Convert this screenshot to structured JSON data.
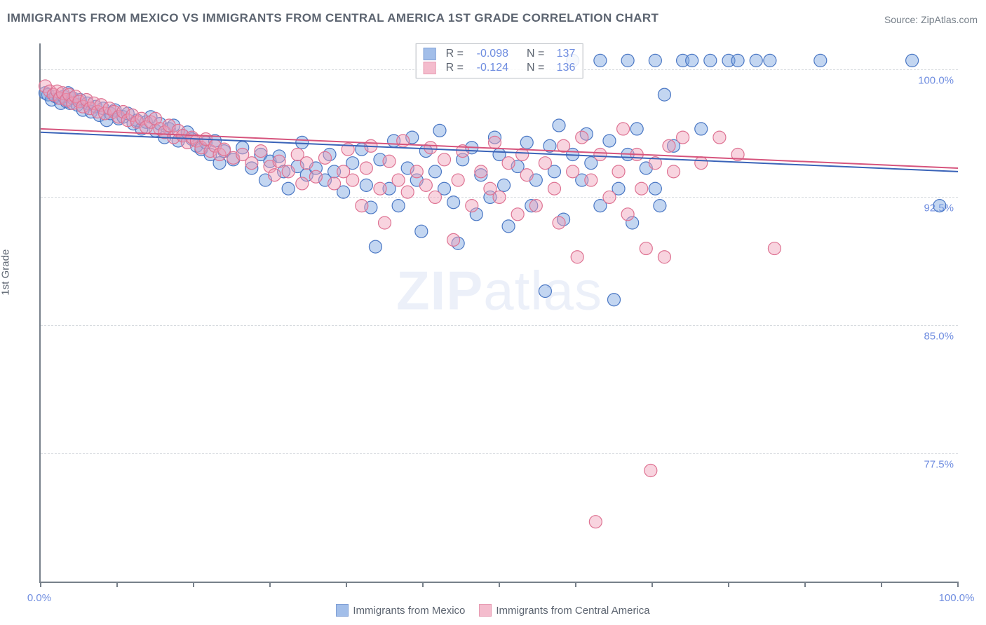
{
  "title": "IMMIGRANTS FROM MEXICO VS IMMIGRANTS FROM CENTRAL AMERICA 1ST GRADE CORRELATION CHART",
  "source_label": "Source: ZipAtlas.com",
  "watermark_a": "ZIP",
  "watermark_b": "atlas",
  "y_axis_label": "1st Grade",
  "chart": {
    "type": "scatter",
    "xlim": [
      0,
      100
    ],
    "ylim": [
      70,
      101.5
    ],
    "x_ticks": [
      0,
      8.3,
      16.7,
      25,
      33.3,
      41.7,
      50,
      58.3,
      66.7,
      75,
      83.3,
      91.7,
      100
    ],
    "x_tick_labels_visible": {
      "start": "0.0%",
      "end": "100.0%"
    },
    "y_gridlines": [
      77.5,
      85.0,
      92.5,
      100.0
    ],
    "y_tick_labels": [
      "77.5%",
      "85.0%",
      "92.5%",
      "100.0%"
    ],
    "grid_color": "#d7dbdf",
    "axis_color": "#77808a",
    "point_radius": 9,
    "point_opacity": 0.45,
    "series": [
      {
        "name": "Immigrants from Mexico",
        "fill": "#7ba3e0",
        "stroke": "#4a77c4",
        "R_label": "R  =",
        "R": "-0.098",
        "N_label": "N  =",
        "N": "137",
        "trend": {
          "y_at_x0": 96.3,
          "y_at_x100": 94.0,
          "color": "#3a63b8",
          "width": 2
        },
        "points": [
          [
            0.5,
            98.6
          ],
          [
            0.8,
            98.5
          ],
          [
            1.2,
            98.2
          ],
          [
            1.6,
            98.4
          ],
          [
            2.0,
            98.3
          ],
          [
            2.2,
            98.0
          ],
          [
            2.5,
            98.4
          ],
          [
            2.8,
            98.1
          ],
          [
            3.0,
            98.6
          ],
          [
            3.2,
            98.0
          ],
          [
            3.5,
            98.3
          ],
          [
            4.0,
            97.9
          ],
          [
            4.3,
            98.2
          ],
          [
            4.6,
            97.6
          ],
          [
            5.1,
            98.0
          ],
          [
            5.5,
            97.5
          ],
          [
            6.0,
            97.8
          ],
          [
            6.4,
            97.3
          ],
          [
            6.8,
            97.7
          ],
          [
            7.2,
            97.0
          ],
          [
            7.6,
            97.4
          ],
          [
            8.1,
            97.6
          ],
          [
            8.5,
            97.1
          ],
          [
            9.0,
            97.2
          ],
          [
            9.5,
            97.4
          ],
          [
            10.1,
            96.8
          ],
          [
            10.5,
            97.0
          ],
          [
            11.0,
            96.5
          ],
          [
            11.5,
            96.9
          ],
          [
            12.0,
            97.2
          ],
          [
            12.5,
            96.4
          ],
          [
            13.0,
            96.8
          ],
          [
            13.5,
            96.0
          ],
          [
            14.0,
            96.5
          ],
          [
            14.5,
            96.7
          ],
          [
            15.0,
            95.8
          ],
          [
            15.5,
            96.1
          ],
          [
            16.0,
            96.3
          ],
          [
            16.5,
            95.9
          ],
          [
            17.0,
            95.5
          ],
          [
            17.5,
            95.3
          ],
          [
            18.0,
            95.7
          ],
          [
            18.5,
            95.0
          ],
          [
            19.0,
            95.8
          ],
          [
            19.5,
            94.5
          ],
          [
            20.0,
            95.2
          ],
          [
            21.0,
            94.7
          ],
          [
            22.0,
            95.4
          ],
          [
            23.0,
            94.2
          ],
          [
            24.0,
            95.0
          ],
          [
            24.5,
            93.5
          ],
          [
            25.0,
            94.6
          ],
          [
            26.0,
            94.9
          ],
          [
            26.5,
            94.0
          ],
          [
            27.0,
            93.0
          ],
          [
            28.0,
            94.3
          ],
          [
            28.5,
            95.7
          ],
          [
            29.0,
            93.8
          ],
          [
            30.0,
            94.2
          ],
          [
            31.0,
            93.5
          ],
          [
            31.5,
            95.0
          ],
          [
            32.0,
            94.0
          ],
          [
            33.0,
            92.8
          ],
          [
            34.0,
            94.5
          ],
          [
            35.0,
            95.3
          ],
          [
            35.5,
            93.2
          ],
          [
            36.0,
            91.9
          ],
          [
            36.5,
            89.6
          ],
          [
            37.0,
            94.7
          ],
          [
            38.0,
            93.0
          ],
          [
            38.5,
            95.8
          ],
          [
            39.0,
            92.0
          ],
          [
            40.0,
            94.2
          ],
          [
            40.5,
            96.0
          ],
          [
            41.0,
            93.5
          ],
          [
            41.5,
            90.5
          ],
          [
            42.0,
            95.2
          ],
          [
            43.0,
            94.0
          ],
          [
            43.5,
            96.4
          ],
          [
            44.0,
            93.0
          ],
          [
            45.0,
            92.2
          ],
          [
            45.5,
            89.8
          ],
          [
            46.0,
            94.7
          ],
          [
            47.0,
            95.4
          ],
          [
            47.5,
            91.5
          ],
          [
            48.0,
            93.8
          ],
          [
            49.0,
            92.5
          ],
          [
            49.5,
            96.0
          ],
          [
            50.0,
            95.0
          ],
          [
            50.5,
            93.2
          ],
          [
            51.0,
            90.8
          ],
          [
            52.0,
            94.3
          ],
          [
            53.0,
            95.7
          ],
          [
            53.5,
            92.0
          ],
          [
            54.0,
            93.5
          ],
          [
            55.0,
            87.0
          ],
          [
            55.5,
            95.5
          ],
          [
            56.0,
            94.0
          ],
          [
            56.5,
            96.7
          ],
          [
            57.0,
            91.2
          ],
          [
            58.0,
            100.5
          ],
          [
            58.0,
            95.0
          ],
          [
            59.0,
            93.5
          ],
          [
            59.5,
            96.2
          ],
          [
            60.0,
            94.5
          ],
          [
            61.0,
            92.0
          ],
          [
            61.0,
            100.5
          ],
          [
            62.0,
            95.8
          ],
          [
            62.5,
            86.5
          ],
          [
            63.0,
            93.0
          ],
          [
            64.0,
            100.5
          ],
          [
            64.0,
            95.0
          ],
          [
            64.5,
            91.0
          ],
          [
            65.0,
            96.5
          ],
          [
            66.0,
            94.2
          ],
          [
            67.0,
            100.5
          ],
          [
            67.0,
            93.0
          ],
          [
            67.5,
            92.0
          ],
          [
            68.0,
            98.5
          ],
          [
            69.0,
            95.5
          ],
          [
            70.0,
            100.5
          ],
          [
            71.0,
            100.5
          ],
          [
            72.0,
            96.5
          ],
          [
            73.0,
            100.5
          ],
          [
            75.0,
            100.5
          ],
          [
            76.0,
            100.5
          ],
          [
            78.0,
            100.5
          ],
          [
            79.5,
            100.5
          ],
          [
            85.0,
            100.5
          ],
          [
            95.0,
            100.5
          ],
          [
            98.0,
            92.0
          ]
        ]
      },
      {
        "name": "Immigrants from Central America",
        "fill": "#f0a0b8",
        "stroke": "#de7292",
        "R_label": "R  =",
        "R": "-0.124",
        "N_label": "N  =",
        "N": "136",
        "trend": {
          "y_at_x0": 96.5,
          "y_at_x100": 94.2,
          "color": "#d6547d",
          "width": 2
        },
        "points": [
          [
            0.5,
            99.0
          ],
          [
            1.0,
            98.7
          ],
          [
            1.4,
            98.5
          ],
          [
            1.8,
            98.7
          ],
          [
            2.1,
            98.3
          ],
          [
            2.4,
            98.6
          ],
          [
            2.8,
            98.2
          ],
          [
            3.1,
            98.5
          ],
          [
            3.5,
            98.0
          ],
          [
            3.8,
            98.4
          ],
          [
            4.2,
            98.1
          ],
          [
            4.6,
            97.8
          ],
          [
            5.0,
            98.2
          ],
          [
            5.4,
            97.7
          ],
          [
            5.8,
            98.0
          ],
          [
            6.2,
            97.5
          ],
          [
            6.6,
            97.9
          ],
          [
            7.0,
            97.4
          ],
          [
            7.5,
            97.7
          ],
          [
            8.0,
            97.5
          ],
          [
            8.5,
            97.2
          ],
          [
            9.0,
            97.5
          ],
          [
            9.5,
            97.0
          ],
          [
            10.0,
            97.3
          ],
          [
            10.5,
            96.9
          ],
          [
            11.0,
            97.1
          ],
          [
            11.5,
            96.6
          ],
          [
            12.0,
            96.9
          ],
          [
            12.5,
            97.1
          ],
          [
            13.0,
            96.5
          ],
          [
            13.5,
            96.3
          ],
          [
            14.0,
            96.7
          ],
          [
            14.5,
            96.0
          ],
          [
            15.0,
            96.4
          ],
          [
            15.5,
            96.1
          ],
          [
            16.0,
            95.7
          ],
          [
            16.5,
            96.0
          ],
          [
            17.0,
            95.8
          ],
          [
            17.5,
            95.4
          ],
          [
            18.0,
            95.9
          ],
          [
            18.5,
            95.2
          ],
          [
            19.0,
            95.5
          ],
          [
            19.5,
            95.0
          ],
          [
            20.0,
            95.3
          ],
          [
            21.0,
            94.8
          ],
          [
            22.0,
            95.0
          ],
          [
            23.0,
            94.5
          ],
          [
            24.0,
            95.2
          ],
          [
            25.0,
            94.3
          ],
          [
            25.5,
            93.8
          ],
          [
            26.0,
            94.6
          ],
          [
            27.0,
            94.0
          ],
          [
            28.0,
            95.0
          ],
          [
            28.5,
            93.3
          ],
          [
            29.0,
            94.5
          ],
          [
            30.0,
            93.7
          ],
          [
            31.0,
            94.8
          ],
          [
            32.0,
            93.3
          ],
          [
            33.0,
            94.0
          ],
          [
            33.5,
            95.3
          ],
          [
            34.0,
            93.5
          ],
          [
            35.0,
            92.0
          ],
          [
            35.5,
            94.2
          ],
          [
            36.0,
            95.5
          ],
          [
            37.0,
            93.0
          ],
          [
            37.5,
            91.0
          ],
          [
            38.0,
            94.6
          ],
          [
            39.0,
            93.5
          ],
          [
            39.5,
            95.8
          ],
          [
            40.0,
            92.8
          ],
          [
            41.0,
            94.0
          ],
          [
            42.0,
            93.2
          ],
          [
            42.5,
            95.4
          ],
          [
            43.0,
            92.5
          ],
          [
            44.0,
            94.7
          ],
          [
            45.0,
            90.0
          ],
          [
            45.5,
            93.5
          ],
          [
            46.0,
            95.2
          ],
          [
            47.0,
            92.0
          ],
          [
            48.0,
            94.0
          ],
          [
            49.0,
            93.0
          ],
          [
            49.5,
            95.7
          ],
          [
            50.0,
            92.5
          ],
          [
            51.0,
            94.5
          ],
          [
            52.0,
            91.5
          ],
          [
            52.5,
            95.0
          ],
          [
            53.0,
            93.8
          ],
          [
            54.0,
            92.0
          ],
          [
            55.0,
            94.5
          ],
          [
            56.0,
            93.0
          ],
          [
            56.5,
            91.0
          ],
          [
            57.0,
            95.5
          ],
          [
            58.0,
            94.0
          ],
          [
            58.5,
            89.0
          ],
          [
            59.0,
            96.0
          ],
          [
            60.0,
            93.5
          ],
          [
            60.5,
            73.5
          ],
          [
            61.0,
            95.0
          ],
          [
            62.0,
            92.5
          ],
          [
            63.0,
            94.0
          ],
          [
            63.5,
            96.5
          ],
          [
            64.0,
            91.5
          ],
          [
            65.0,
            95.0
          ],
          [
            65.5,
            93.0
          ],
          [
            66.0,
            89.5
          ],
          [
            66.5,
            76.5
          ],
          [
            67.0,
            94.5
          ],
          [
            68.0,
            89.0
          ],
          [
            68.5,
            95.5
          ],
          [
            69.0,
            94.0
          ],
          [
            70.0,
            96.0
          ],
          [
            72.0,
            94.5
          ],
          [
            74.0,
            96.0
          ],
          [
            76.0,
            95.0
          ],
          [
            80.0,
            89.5
          ]
        ]
      }
    ]
  },
  "legend_bottom": [
    {
      "label": "Immigrants from Mexico",
      "fill": "#7ba3e0",
      "stroke": "#4a77c4"
    },
    {
      "label": "Immigrants from Central America",
      "fill": "#f0a0b8",
      "stroke": "#de7292"
    }
  ]
}
